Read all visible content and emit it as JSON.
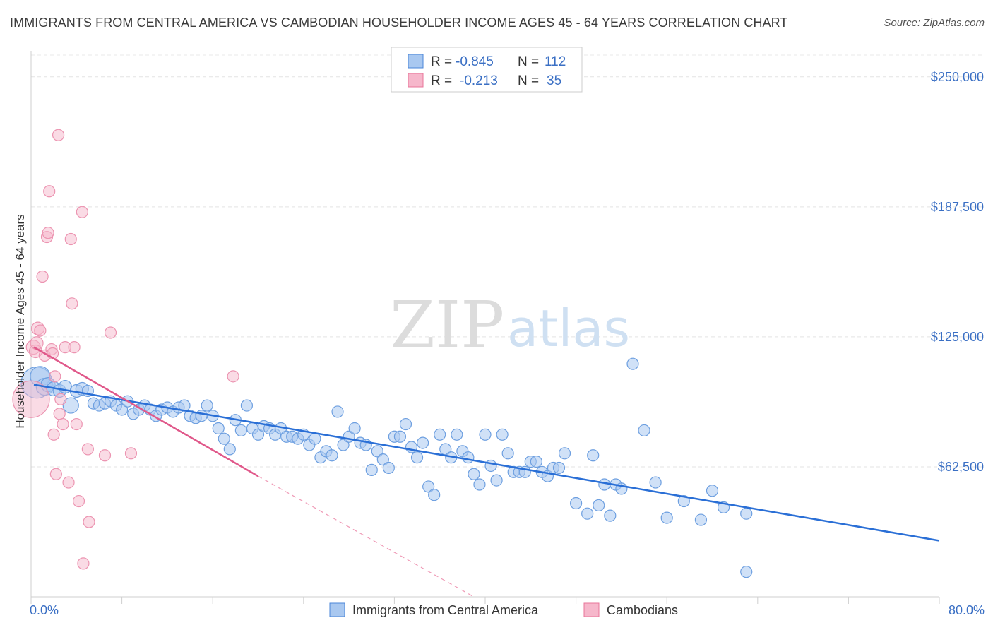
{
  "title": "IMMIGRANTS FROM CENTRAL AMERICA VS CAMBODIAN HOUSEHOLDER INCOME AGES 45 - 64 YEARS CORRELATION CHART",
  "source": "Source: ZipAtlas.com",
  "watermark": {
    "zip": "ZIP",
    "atlas": "atlas"
  },
  "colors": {
    "blue": "#4a86d8",
    "blue_fill": "#a9c8f0",
    "pink": "#e8749a",
    "pink_fill": "#f6b7cb",
    "grid": "#e3e3e3",
    "axis_label": "#3a6fc4"
  },
  "legend": {
    "rows": [
      {
        "r_label": "R =",
        "r_value": "-0.845",
        "n_label": "N =",
        "n_value": "112"
      },
      {
        "r_label": "R =",
        "r_value": "-0.213",
        "n_label": "N =",
        "n_value": "35"
      }
    ]
  },
  "bottom_legend": [
    "Immigrants from Central America",
    "Cambodians"
  ],
  "chart_data": {
    "type": "scatter",
    "ylabel": "Householder Income Ages 45 - 64 years",
    "xlim": [
      0,
      80
    ],
    "ylim": [
      0,
      262500
    ],
    "x_tick_labels": [
      "0.0%",
      "80.0%"
    ],
    "y_ticks": [
      62500,
      125000,
      187500,
      250000
    ],
    "y_tick_labels": [
      "$62,500",
      "$125,000",
      "$187,500",
      "$250,000"
    ],
    "series": [
      {
        "name": "Immigrants from Central America",
        "color": "#4a86d8",
        "trend": {
          "x": [
            0,
            80
          ],
          "y": [
            102000,
            27000
          ]
        },
        "points": [
          [
            0.5,
            103000,
            22
          ],
          [
            0.8,
            106000,
            14
          ],
          [
            1.2,
            101000,
            12
          ],
          [
            1.5,
            102000,
            10
          ],
          [
            2.0,
            100000,
            10
          ],
          [
            2.5,
            99000,
            9
          ],
          [
            3.0,
            101000,
            9
          ],
          [
            3.5,
            92000,
            11
          ],
          [
            4.0,
            99000,
            9
          ],
          [
            4.5,
            100000,
            9
          ],
          [
            5.0,
            99000,
            8
          ],
          [
            5.5,
            93000,
            8
          ],
          [
            6.0,
            92000,
            8
          ],
          [
            6.5,
            93000,
            8
          ],
          [
            7.0,
            94000,
            8
          ],
          [
            7.5,
            92000,
            8
          ],
          [
            8.0,
            90000,
            8
          ],
          [
            8.5,
            94000,
            8
          ],
          [
            9.0,
            88000,
            8
          ],
          [
            9.5,
            90000,
            8
          ],
          [
            10.0,
            92000,
            8
          ],
          [
            10.5,
            90000,
            8
          ],
          [
            11.0,
            87000,
            8
          ],
          [
            11.5,
            90000,
            8
          ],
          [
            12.0,
            91000,
            8
          ],
          [
            12.5,
            89000,
            8
          ],
          [
            13.0,
            91000,
            8
          ],
          [
            13.5,
            92000,
            8
          ],
          [
            14.0,
            87000,
            8
          ],
          [
            14.5,
            86000,
            8
          ],
          [
            15.0,
            87000,
            8
          ],
          [
            15.5,
            92000,
            8
          ],
          [
            16.0,
            87000,
            8
          ],
          [
            16.5,
            81000,
            8
          ],
          [
            17.0,
            76000,
            8
          ],
          [
            17.5,
            71000,
            8
          ],
          [
            18.0,
            85000,
            8
          ],
          [
            18.5,
            80000,
            8
          ],
          [
            19.0,
            92000,
            8
          ],
          [
            19.5,
            81000,
            8
          ],
          [
            20.0,
            78000,
            8
          ],
          [
            20.5,
            82000,
            8
          ],
          [
            21.0,
            81000,
            8
          ],
          [
            21.5,
            78000,
            8
          ],
          [
            22.0,
            81000,
            8
          ],
          [
            22.5,
            77000,
            8
          ],
          [
            23.0,
            77000,
            8
          ],
          [
            23.5,
            76000,
            8
          ],
          [
            24.0,
            78000,
            8
          ],
          [
            24.5,
            73000,
            8
          ],
          [
            25.0,
            76000,
            8
          ],
          [
            25.5,
            67000,
            8
          ],
          [
            26.0,
            70000,
            8
          ],
          [
            26.5,
            68000,
            8
          ],
          [
            27.0,
            89000,
            8
          ],
          [
            27.5,
            73000,
            8
          ],
          [
            28.0,
            77000,
            8
          ],
          [
            28.5,
            81000,
            8
          ],
          [
            29.0,
            74000,
            8
          ],
          [
            29.5,
            73000,
            8
          ],
          [
            30.0,
            61000,
            8
          ],
          [
            30.5,
            70000,
            8
          ],
          [
            31.0,
            66000,
            8
          ],
          [
            31.5,
            62000,
            8
          ],
          [
            32.0,
            77000,
            8
          ],
          [
            32.5,
            77000,
            8
          ],
          [
            33.0,
            83000,
            8
          ],
          [
            33.5,
            72000,
            8
          ],
          [
            34.0,
            67000,
            8
          ],
          [
            34.5,
            74000,
            8
          ],
          [
            35.0,
            53000,
            8
          ],
          [
            35.5,
            49000,
            8
          ],
          [
            36.0,
            78000,
            8
          ],
          [
            36.5,
            71000,
            8
          ],
          [
            37.0,
            67000,
            8
          ],
          [
            37.5,
            78000,
            8
          ],
          [
            38.0,
            70000,
            8
          ],
          [
            38.5,
            67000,
            8
          ],
          [
            39.0,
            59000,
            8
          ],
          [
            39.5,
            54000,
            8
          ],
          [
            40.0,
            78000,
            8
          ],
          [
            40.5,
            63000,
            8
          ],
          [
            41.0,
            56000,
            8
          ],
          [
            41.5,
            78000,
            8
          ],
          [
            42.0,
            69000,
            8
          ],
          [
            42.5,
            60000,
            8
          ],
          [
            43.0,
            60000,
            8
          ],
          [
            43.5,
            60000,
            8
          ],
          [
            44.0,
            65000,
            8
          ],
          [
            44.5,
            65000,
            8
          ],
          [
            45.0,
            60000,
            8
          ],
          [
            45.5,
            58000,
            8
          ],
          [
            46.0,
            62000,
            8
          ],
          [
            46.5,
            62000,
            8
          ],
          [
            47.0,
            69000,
            8
          ],
          [
            48.0,
            45000,
            8
          ],
          [
            49.0,
            40000,
            8
          ],
          [
            49.5,
            68000,
            8
          ],
          [
            50.0,
            44000,
            8
          ],
          [
            50.5,
            54000,
            8
          ],
          [
            51.0,
            39000,
            8
          ],
          [
            51.5,
            54000,
            8
          ],
          [
            52.0,
            52000,
            8
          ],
          [
            53.0,
            112000,
            8
          ],
          [
            54.0,
            80000,
            8
          ],
          [
            55.0,
            55000,
            8
          ],
          [
            56.0,
            38000,
            8
          ],
          [
            57.5,
            46000,
            8
          ],
          [
            59.0,
            37000,
            8
          ],
          [
            60.0,
            51000,
            8
          ],
          [
            61.0,
            43000,
            8
          ],
          [
            63.0,
            40000,
            8
          ],
          [
            63.0,
            12000,
            8
          ]
        ]
      },
      {
        "name": "Cambodians",
        "color": "#e8749a",
        "trend": {
          "x": [
            0,
            20
          ],
          "y": [
            120000,
            58000
          ]
        },
        "trend_dashed": {
          "x": [
            20,
            39
          ],
          "y": [
            58000,
            0
          ]
        },
        "points": [
          [
            0.0,
            95000,
            26
          ],
          [
            0.2,
            120000,
            10
          ],
          [
            0.4,
            118000,
            9
          ],
          [
            0.5,
            122000,
            9
          ],
          [
            0.6,
            129000,
            9
          ],
          [
            0.8,
            128000,
            8
          ],
          [
            1.0,
            154000,
            8
          ],
          [
            1.2,
            116000,
            8
          ],
          [
            1.4,
            173000,
            8
          ],
          [
            1.5,
            175000,
            8
          ],
          [
            1.6,
            195000,
            8
          ],
          [
            1.8,
            119000,
            8
          ],
          [
            1.9,
            117000,
            8
          ],
          [
            2.0,
            78000,
            8
          ],
          [
            2.1,
            106000,
            8
          ],
          [
            2.2,
            59000,
            8
          ],
          [
            2.4,
            222000,
            8
          ],
          [
            2.5,
            88000,
            8
          ],
          [
            2.6,
            95000,
            8
          ],
          [
            2.8,
            83000,
            8
          ],
          [
            3.0,
            120000,
            8
          ],
          [
            3.3,
            55000,
            8
          ],
          [
            3.5,
            172000,
            8
          ],
          [
            3.6,
            141000,
            8
          ],
          [
            3.8,
            120000,
            8
          ],
          [
            4.0,
            83000,
            8
          ],
          [
            4.2,
            46000,
            8
          ],
          [
            4.5,
            185000,
            8
          ],
          [
            4.6,
            16000,
            8
          ],
          [
            5.0,
            71000,
            8
          ],
          [
            5.1,
            36000,
            8
          ],
          [
            6.5,
            68000,
            8
          ],
          [
            7.0,
            127000,
            8
          ],
          [
            8.8,
            69000,
            8
          ],
          [
            17.8,
            106000,
            8
          ]
        ]
      }
    ]
  }
}
